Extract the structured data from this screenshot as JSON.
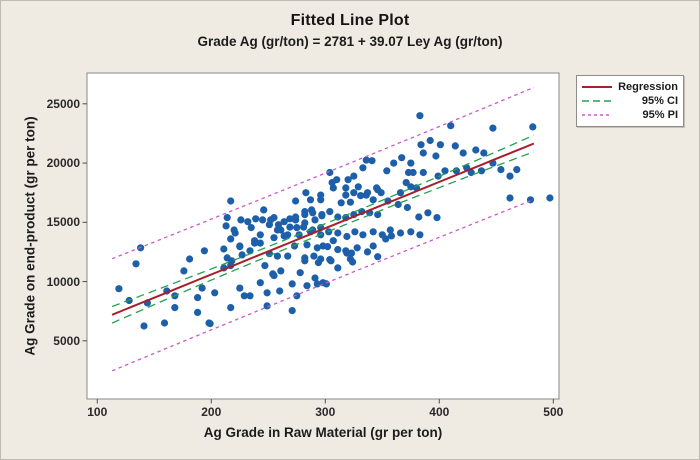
{
  "chart_data": {
    "type": "scatter",
    "title": "Fitted Line Plot",
    "subtitle": "Grade Ag (gr/ton) = 2781 + 39.07 Ley Ag (gr/ton)",
    "xlabel": "Ag Grade in Raw Material (gr per ton)",
    "ylabel": "Ag Grade on end-product (gr per ton)",
    "x_ticks": [
      100,
      200,
      300,
      400,
      500
    ],
    "y_ticks": [
      5000,
      10000,
      15000,
      20000,
      25000
    ],
    "xlim": [
      91,
      505
    ],
    "ylim": [
      90,
      27600
    ],
    "grid": false,
    "legend_position": "top-right-outside",
    "point_color": "#1D5FA9",
    "regression": {
      "label": "Regression",
      "color": "#A6202B",
      "style": "solid",
      "intercept": 2781,
      "slope": 39.07,
      "x_range": [
        113,
        483
      ]
    },
    "ci_band": {
      "label": "95% CI",
      "color": "#23A14E",
      "style": "long-dash",
      "base_offset": 380,
      "edge_extra": 320,
      "center": 298,
      "half_span": 185
    },
    "pi_band": {
      "label": "95% PI",
      "color": "#CB59CB",
      "style": "short-dash",
      "base_offset": 4650,
      "edge_extra": 80,
      "center": 298,
      "half_span": 185
    },
    "points": [
      [
        217,
        16800
      ],
      [
        246,
        16050
      ],
      [
        274,
        16800
      ],
      [
        283,
        17500
      ],
      [
        288,
        16050
      ],
      [
        296,
        17300
      ],
      [
        274,
        15200
      ],
      [
        269,
        15300
      ],
      [
        282,
        15650
      ],
      [
        291,
        15200
      ],
      [
        252,
        15200
      ],
      [
        259,
        14800
      ],
      [
        261,
        14350
      ],
      [
        226,
        15200
      ],
      [
        235,
        14550
      ],
      [
        239,
        15300
      ],
      [
        213,
        14700
      ],
      [
        220,
        14350
      ],
      [
        275,
        14550
      ],
      [
        297,
        15550
      ],
      [
        296,
        16900
      ],
      [
        214,
        15400
      ],
      [
        232,
        15050
      ],
      [
        245,
        15200
      ],
      [
        251,
        14800
      ],
      [
        255,
        15400
      ],
      [
        264,
        15050
      ],
      [
        267,
        13950
      ],
      [
        269,
        14600
      ],
      [
        274,
        15450
      ],
      [
        277,
        13950
      ],
      [
        282,
        14950
      ],
      [
        287,
        14200
      ],
      [
        296,
        13950
      ],
      [
        221,
        14100
      ],
      [
        225,
        12950
      ],
      [
        227,
        12250
      ],
      [
        238,
        13250
      ],
      [
        243,
        13950
      ],
      [
        258,
        14350
      ],
      [
        138,
        12850
      ],
      [
        134,
        11500
      ],
      [
        119,
        9400
      ],
      [
        128,
        8400
      ],
      [
        144,
        8200
      ],
      [
        141,
        6250
      ],
      [
        159,
        6500
      ],
      [
        217,
        13600
      ],
      [
        238,
        13450
      ],
      [
        255,
        13700
      ],
      [
        264,
        13850
      ],
      [
        194,
        12600
      ],
      [
        211,
        12750
      ],
      [
        214,
        12000
      ],
      [
        218,
        11750
      ],
      [
        225,
        13000
      ],
      [
        234,
        12600
      ],
      [
        243,
        13250
      ],
      [
        273,
        13000
      ],
      [
        282,
        12000
      ],
      [
        290,
        12150
      ],
      [
        267,
        12150
      ],
      [
        258,
        12150
      ],
      [
        251,
        12350
      ],
      [
        181,
        11900
      ],
      [
        176,
        10900
      ],
      [
        211,
        11150
      ],
      [
        217,
        11350
      ],
      [
        247,
        11350
      ],
      [
        254,
        10650
      ],
      [
        261,
        10900
      ],
      [
        278,
        10750
      ],
      [
        282,
        11750
      ],
      [
        291,
        10300
      ],
      [
        296,
        11900
      ],
      [
        161,
        9200
      ],
      [
        168,
        8800
      ],
      [
        188,
        8650
      ],
      [
        192,
        9450
      ],
      [
        203,
        9050
      ],
      [
        225,
        9450
      ],
      [
        229,
        8800
      ],
      [
        234,
        8800
      ],
      [
        243,
        9900
      ],
      [
        249,
        9050
      ],
      [
        255,
        10500
      ],
      [
        260,
        9200
      ],
      [
        271,
        9800
      ],
      [
        275,
        8800
      ],
      [
        284,
        9650
      ],
      [
        293,
        9800
      ],
      [
        168,
        7800
      ],
      [
        188,
        7400
      ],
      [
        198,
        6500
      ],
      [
        217,
        7800
      ],
      [
        249,
        7950
      ],
      [
        271,
        7550
      ],
      [
        199,
        6450
      ],
      [
        307,
        13450
      ],
      [
        298,
        13000
      ],
      [
        318,
        12600
      ],
      [
        323,
        12400
      ],
      [
        342,
        13000
      ],
      [
        353,
        13600
      ],
      [
        358,
        13850
      ],
      [
        305,
        11750
      ],
      [
        322,
        11900
      ],
      [
        311,
        11150
      ],
      [
        298,
        9900
      ],
      [
        301,
        9800
      ],
      [
        383,
        24000
      ],
      [
        410,
        23150
      ],
      [
        447,
        22950
      ],
      [
        482,
        23050
      ],
      [
        384,
        21550
      ],
      [
        392,
        21900
      ],
      [
        401,
        21550
      ],
      [
        386,
        20850
      ],
      [
        397,
        20600
      ],
      [
        414,
        21450
      ],
      [
        421,
        20850
      ],
      [
        432,
        21100
      ],
      [
        439,
        20850
      ],
      [
        447,
        20000
      ],
      [
        454,
        19450
      ],
      [
        462,
        18900
      ],
      [
        468,
        19450
      ],
      [
        497,
        17050
      ],
      [
        480,
        16900
      ],
      [
        375,
        20000
      ],
      [
        367,
        20450
      ],
      [
        336,
        20250
      ],
      [
        341,
        20200
      ],
      [
        325,
        18900
      ],
      [
        320,
        18600
      ],
      [
        333,
        19600
      ],
      [
        345,
        17900
      ],
      [
        354,
        19350
      ],
      [
        360,
        20000
      ],
      [
        318,
        17900
      ],
      [
        310,
        18600
      ],
      [
        307,
        17900
      ],
      [
        304,
        19200
      ],
      [
        314,
        16650
      ],
      [
        325,
        17500
      ],
      [
        331,
        17250
      ],
      [
        336,
        17300
      ],
      [
        342,
        16900
      ],
      [
        349,
        17500
      ],
      [
        355,
        16800
      ],
      [
        366,
        17500
      ],
      [
        373,
        19200
      ],
      [
        377,
        19200
      ],
      [
        386,
        19200
      ],
      [
        399,
        18900
      ],
      [
        405,
        19350
      ],
      [
        415,
        19350
      ],
      [
        424,
        19600
      ],
      [
        428,
        19200
      ],
      [
        437,
        19350
      ],
      [
        371,
        18350
      ],
      [
        380,
        17900
      ],
      [
        462,
        17050
      ],
      [
        306,
        18350
      ],
      [
        329,
        18000
      ],
      [
        337,
        17500
      ],
      [
        346,
        17750
      ],
      [
        375,
        18000
      ],
      [
        318,
        17300
      ],
      [
        322,
        16700
      ],
      [
        287,
        16900
      ],
      [
        282,
        15900
      ],
      [
        289,
        15800
      ],
      [
        297,
        15650
      ],
      [
        304,
        15900
      ],
      [
        311,
        15450
      ],
      [
        318,
        15400
      ],
      [
        325,
        15650
      ],
      [
        332,
        15900
      ],
      [
        339,
        15800
      ],
      [
        346,
        15650
      ],
      [
        364,
        16500
      ],
      [
        372,
        16250
      ],
      [
        382,
        15450
      ],
      [
        390,
        15800
      ],
      [
        398,
        15400
      ],
      [
        281,
        14600
      ],
      [
        289,
        14350
      ],
      [
        296,
        14550
      ],
      [
        303,
        14200
      ],
      [
        311,
        14100
      ],
      [
        319,
        13800
      ],
      [
        326,
        14200
      ],
      [
        333,
        13950
      ],
      [
        342,
        14200
      ],
      [
        350,
        13950
      ],
      [
        357,
        14350
      ],
      [
        366,
        14100
      ],
      [
        375,
        14200
      ],
      [
        383,
        13950
      ],
      [
        284,
        13100
      ],
      [
        293,
        12850
      ],
      [
        302,
        12950
      ],
      [
        311,
        12700
      ],
      [
        319,
        12400
      ],
      [
        328,
        12850
      ],
      [
        337,
        12500
      ],
      [
        346,
        12100
      ],
      [
        304,
        11850
      ],
      [
        324,
        11650
      ],
      [
        294,
        11600
      ]
    ]
  }
}
